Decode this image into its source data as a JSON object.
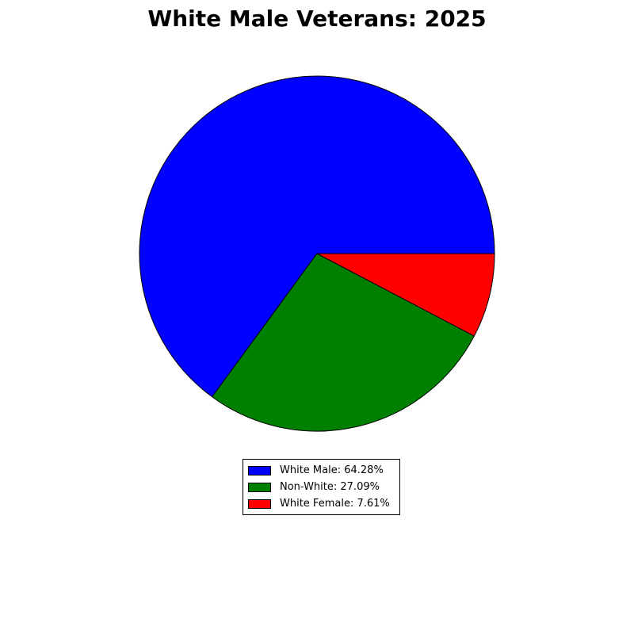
{
  "chart_data": {
    "type": "pie",
    "title": "White Male Veterans: 2025",
    "start_angle_deg": 0,
    "direction": "counterclockwise",
    "legend_placement": "below",
    "slices": [
      {
        "label": "White Male: 64.28%",
        "value": 64.28,
        "color": "#0000ff"
      },
      {
        "label": "Non-White: 27.09%",
        "value": 27.09,
        "color": "#008000"
      },
      {
        "label": "White Female: 7.61%",
        "value": 7.61,
        "color": "#ff0000"
      }
    ]
  }
}
